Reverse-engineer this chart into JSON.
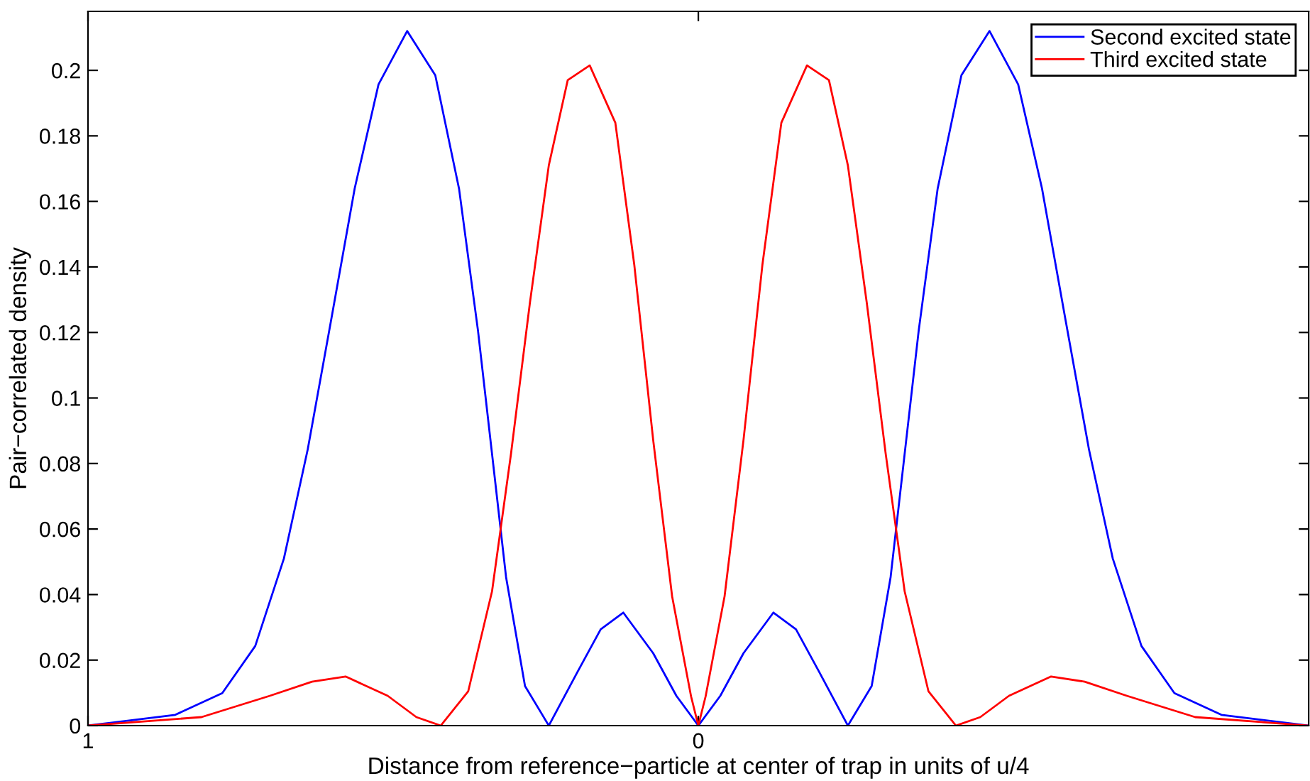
{
  "chart_data": {
    "type": "line",
    "xlabel": "Distance from reference−particle at center of trap in units of u/4",
    "ylabel": "Pair−correlated density",
    "xlim": [
      -1,
      1
    ],
    "xticks": [
      {
        "value": -1,
        "label": "1"
      },
      0
    ],
    "ylim": [
      0,
      0.218
    ],
    "yticks": [
      0,
      0.02,
      0.04,
      0.06,
      0.08,
      0.1,
      0.12,
      0.14,
      0.16,
      0.18,
      0.2
    ],
    "legend": "top right",
    "grid": false,
    "marker": "none",
    "line_style": "solid",
    "series": [
      {
        "name": "Second excited state",
        "color": "#0000ff",
        "x": [
          -1,
          -0.857,
          -0.78,
          -0.726,
          -0.679,
          -0.64,
          -0.602,
          -0.563,
          -0.524,
          -0.477,
          -0.431,
          -0.392,
          -0.361,
          -0.338,
          -0.315,
          -0.284,
          -0.245,
          -0.198,
          -0.16,
          -0.123,
          -0.074,
          -0.036,
          0,
          0.036,
          0.074,
          0.123,
          0.16,
          0.198,
          0.245,
          0.284,
          0.315,
          0.338,
          0.361,
          0.392,
          0.431,
          0.477,
          0.524,
          0.563,
          0.602,
          0.64,
          0.679,
          0.726,
          0.78,
          0.857,
          1
        ],
        "values": [
          0,
          0.0033,
          0.0099,
          0.0243,
          0.051,
          0.0843,
          0.1234,
          0.164,
          0.1957,
          0.212,
          0.1985,
          0.1638,
          0.1205,
          0.0829,
          0.0453,
          0.0121,
          0,
          0.0164,
          0.0294,
          0.0345,
          0.0221,
          0.0091,
          0,
          0.0091,
          0.0221,
          0.0345,
          0.0294,
          0.0164,
          0,
          0.0121,
          0.0453,
          0.0829,
          0.1205,
          0.1638,
          0.1985,
          0.212,
          0.1957,
          0.164,
          0.1234,
          0.0843,
          0.051,
          0.0243,
          0.0099,
          0.0033,
          0
        ]
      },
      {
        "name": "Third excited state",
        "color": "#ff0000",
        "x": [
          -1,
          -0.814,
          -0.702,
          -0.633,
          -0.578,
          -0.509,
          -0.462,
          -0.422,
          -0.377,
          -0.338,
          -0.307,
          -0.276,
          -0.245,
          -0.214,
          -0.178,
          -0.136,
          -0.105,
          -0.074,
          -0.043,
          -0.012,
          0,
          0.012,
          0.043,
          0.074,
          0.105,
          0.136,
          0.178,
          0.214,
          0.245,
          0.276,
          0.307,
          0.338,
          0.377,
          0.422,
          0.462,
          0.509,
          0.578,
          0.633,
          0.702,
          0.814,
          1
        ],
        "values": [
          0,
          0.0026,
          0.0091,
          0.0134,
          0.015,
          0.0091,
          0.0026,
          0,
          0.0105,
          0.041,
          0.0829,
          0.129,
          0.171,
          0.197,
          0.2015,
          0.184,
          0.1407,
          0.0872,
          0.0395,
          0.009,
          0,
          0.009,
          0.0395,
          0.0872,
          0.1407,
          0.184,
          0.2015,
          0.197,
          0.171,
          0.129,
          0.0829,
          0.041,
          0.0105,
          0,
          0.0026,
          0.0091,
          0.015,
          0.0134,
          0.0091,
          0.0026,
          0
        ]
      }
    ]
  }
}
